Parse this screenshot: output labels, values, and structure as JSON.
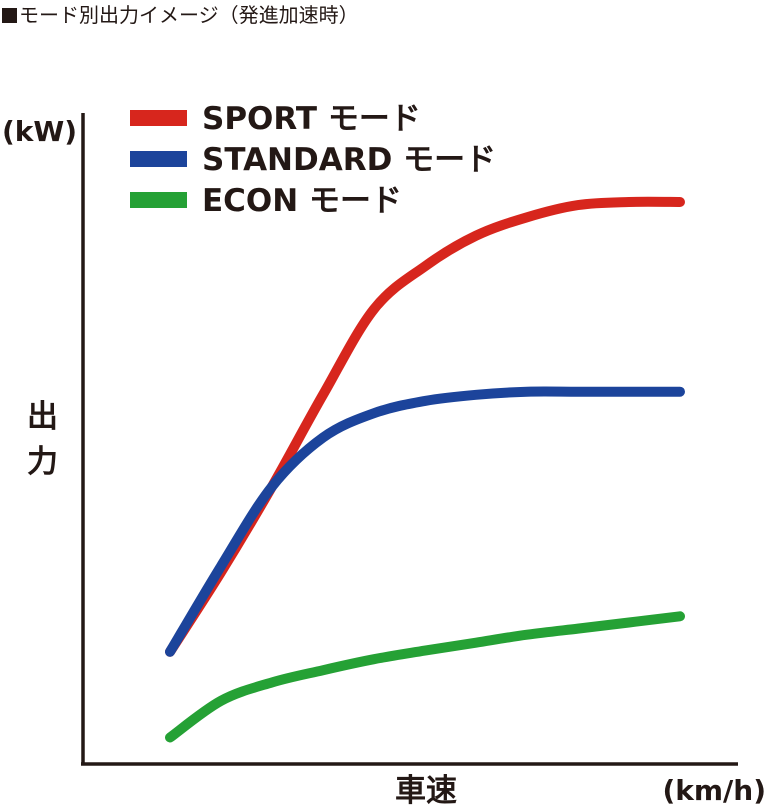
{
  "title": "モード別出力イメージ（発進加速時）",
  "chart_data": {
    "type": "line",
    "title": "モード別出力イメージ（発進加速時）",
    "xlabel": "車速",
    "xunit": "(km/h)",
    "ylabel": "出力",
    "yunit": "(kW)",
    "xlim": [
      0,
      100
    ],
    "ylim": [
      0,
      100
    ],
    "grid": false,
    "legend_position": "top-left",
    "series": [
      {
        "name": "SPORT モード",
        "color": "#d7261d",
        "x": [
          0,
          10,
          20,
          30,
          40,
          50,
          60,
          70,
          80,
          90,
          100
        ],
        "y": [
          18,
          31,
          45,
          60,
          74,
          81,
          86,
          89,
          91,
          91.5,
          91.5
        ]
      },
      {
        "name": "STANDARD モード",
        "color": "#1c449b",
        "x": [
          0,
          10,
          20,
          30,
          40,
          50,
          60,
          70,
          80,
          90,
          100
        ],
        "y": [
          18,
          32,
          45,
          53,
          57,
          59,
          60,
          60.5,
          60.5,
          60.5,
          60.5
        ]
      },
      {
        "name": "ECON モード",
        "color": "#25a135",
        "x": [
          0,
          10,
          20,
          30,
          40,
          50,
          60,
          70,
          80,
          90,
          100
        ],
        "y": [
          4,
          10,
          13,
          15,
          16.8,
          18.2,
          19.5,
          20.8,
          21.8,
          22.8,
          23.8
        ]
      }
    ]
  }
}
